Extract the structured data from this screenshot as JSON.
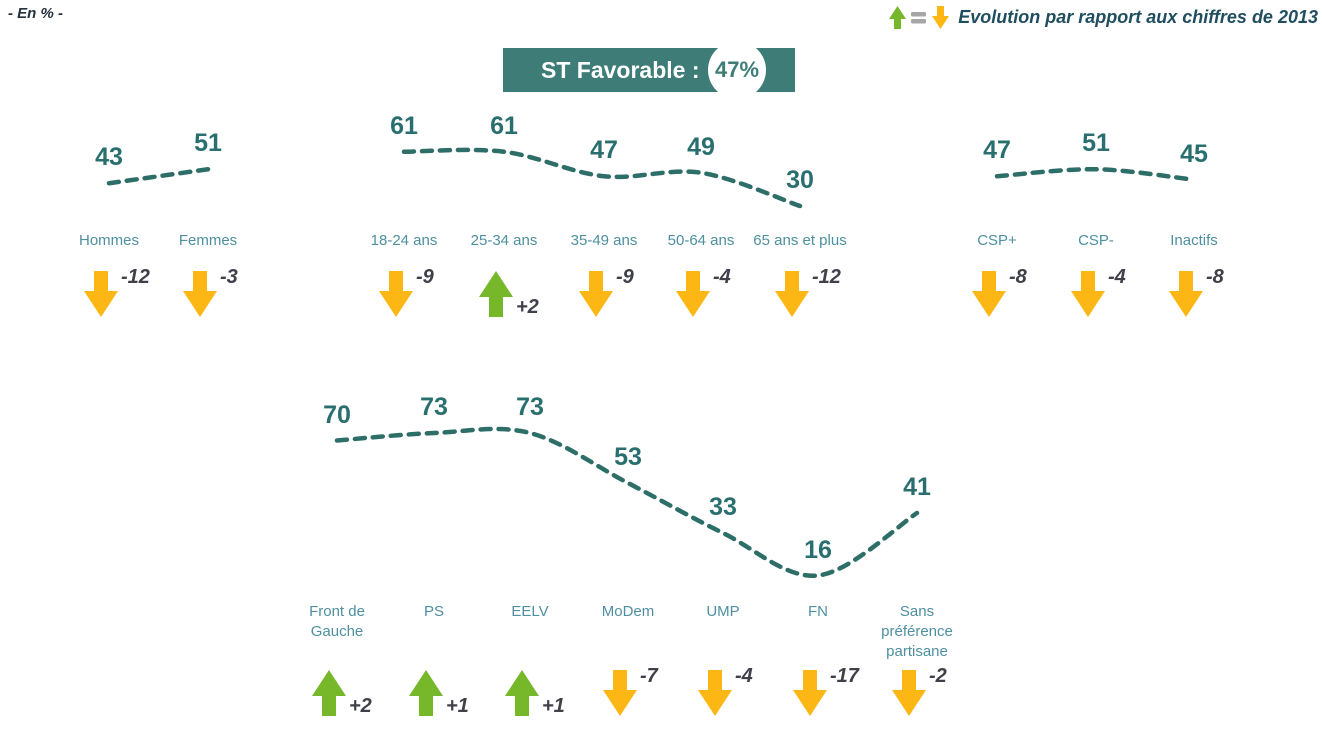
{
  "page": {
    "unit_note": "- En % -"
  },
  "legend": {
    "icons": [
      "up-arrow-icon",
      "equals-icon",
      "down-arrow-icon"
    ],
    "text": "Evolution par rapport aux chiffres de 2013"
  },
  "banner": {
    "label": "ST Favorable :",
    "value": "47%"
  },
  "colors": {
    "teal": "#3E7C78",
    "value_number": "#2A6F6F",
    "curve": "#2E6E68",
    "category_label": "#4E8FA0",
    "up_arrow": "#76B82A",
    "down_arrow": "#FDB714",
    "equals": "#A6A6A6",
    "evolution_text": "#3F4049",
    "legend_text": "#1F4E5F"
  },
  "chart_data": [
    {
      "type": "line",
      "line_style": "dashed",
      "title": "ST Favorable : 47%",
      "unit": "%",
      "grid": false,
      "groups": [
        {
          "name": "sexe",
          "categories": [
            "Hommes",
            "Femmes"
          ],
          "values": [
            43,
            51
          ],
          "evolutions": [
            "-12",
            "-3"
          ]
        },
        {
          "name": "age",
          "categories": [
            "18-24 ans",
            "25-34 ans",
            "35-49 ans",
            "50-64 ans",
            "65 ans et plus"
          ],
          "values": [
            61,
            61,
            47,
            49,
            30
          ],
          "evolutions": [
            "-9",
            "+2",
            "-9",
            "-4",
            "-12"
          ]
        },
        {
          "name": "csp",
          "categories": [
            "CSP+",
            "CSP-",
            "Inactifs"
          ],
          "values": [
            47,
            51,
            45
          ],
          "evolutions": [
            "-8",
            "-4",
            "-8"
          ]
        }
      ]
    },
    {
      "type": "line",
      "line_style": "dashed",
      "unit": "%",
      "grid": false,
      "groups": [
        {
          "name": "preference-partisane",
          "categories": [
            "Front de Gauche",
            "PS",
            "EELV",
            "MoDem",
            "UMP",
            "FN",
            "Sans préférence partisane"
          ],
          "values": [
            70,
            73,
            73,
            53,
            33,
            16,
            41
          ],
          "evolutions": [
            "+2",
            "+1",
            "+1",
            "-7",
            "-4",
            "-17",
            "-2"
          ]
        }
      ]
    }
  ]
}
